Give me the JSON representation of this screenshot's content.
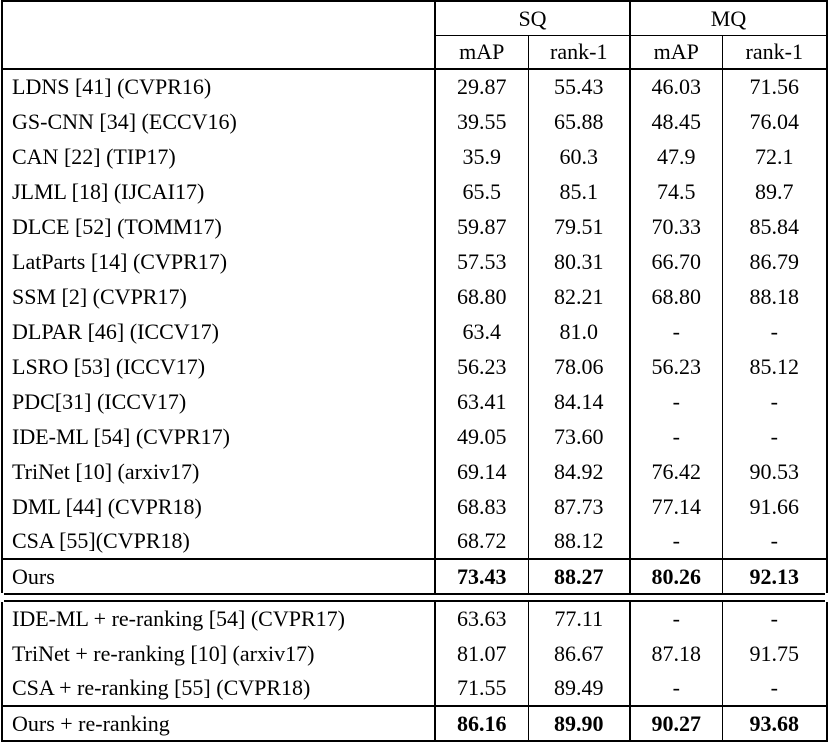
{
  "table": {
    "colors": {
      "border": "#000000",
      "text": "#000000",
      "background": "#ffffff"
    },
    "header": {
      "groups": [
        {
          "label": "SQ"
        },
        {
          "label": "MQ"
        }
      ],
      "subcolumns": [
        "mAP",
        "rank-1",
        "mAP",
        "rank-1"
      ]
    },
    "sections": [
      {
        "rows": [
          {
            "method": "LDNS [41] (CVPR16)",
            "values": [
              "29.87",
              "55.43",
              "46.03",
              "71.56"
            ]
          },
          {
            "method": "GS-CNN [34] (ECCV16)",
            "values": [
              "39.55",
              "65.88",
              "48.45",
              "76.04"
            ]
          },
          {
            "method": "CAN [22] (TIP17)",
            "values": [
              "35.9",
              "60.3",
              "47.9",
              "72.1"
            ]
          },
          {
            "method": "JLML [18] (IJCAI17)",
            "values": [
              "65.5",
              "85.1",
              "74.5",
              "89.7"
            ]
          },
          {
            "method": "DLCE [52] (TOMM17)",
            "values": [
              "59.87",
              "79.51",
              "70.33",
              "85.84"
            ]
          },
          {
            "method": "LatParts [14] (CVPR17)",
            "values": [
              "57.53",
              "80.31",
              "66.70",
              "86.79"
            ]
          },
          {
            "method": "SSM [2] (CVPR17)",
            "values": [
              "68.80",
              "82.21",
              "68.80",
              "88.18"
            ]
          },
          {
            "method": "DLPAR [46] (ICCV17)",
            "values": [
              "63.4",
              "81.0",
              "-",
              "-"
            ]
          },
          {
            "method": "LSRO [53] (ICCV17)",
            "values": [
              "56.23",
              "78.06",
              "56.23",
              "85.12"
            ]
          },
          {
            "method": "PDC[31] (ICCV17)",
            "values": [
              "63.41",
              "84.14",
              "-",
              "-"
            ]
          },
          {
            "method": "IDE-ML [54] (CVPR17)",
            "values": [
              "49.05",
              "73.60",
              "-",
              "-"
            ]
          },
          {
            "method": "TriNet [10] (arxiv17)",
            "values": [
              "69.14",
              "84.92",
              "76.42",
              "90.53"
            ]
          },
          {
            "method": "DML [44] (CVPR18)",
            "values": [
              "68.83",
              "87.73",
              "77.14",
              "91.66"
            ]
          },
          {
            "method": "CSA [55](CVPR18)",
            "values": [
              "68.72",
              "88.12",
              "-",
              "-"
            ]
          }
        ],
        "summary": {
          "method": "Ours",
          "values": [
            "73.43",
            "88.27",
            "80.26",
            "92.13"
          ]
        }
      },
      {
        "rows": [
          {
            "method": "IDE-ML + re-ranking [54] (CVPR17)",
            "values": [
              "63.63",
              "77.11",
              "-",
              "-"
            ]
          },
          {
            "method": "TriNet + re-ranking [10] (arxiv17)",
            "values": [
              "81.07",
              "86.67",
              "87.18",
              "91.75"
            ]
          },
          {
            "method": "CSA + re-ranking [55] (CVPR18)",
            "values": [
              "71.55",
              "89.49",
              "-",
              "-"
            ]
          }
        ],
        "summary": {
          "method": "Ours + re-ranking",
          "values": [
            "86.16",
            "89.90",
            "90.27",
            "93.68"
          ]
        }
      }
    ]
  }
}
